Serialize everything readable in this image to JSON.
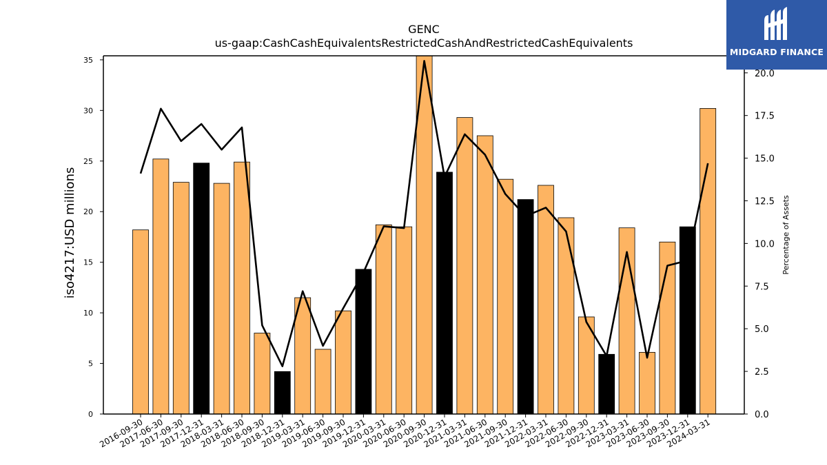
{
  "logo": {
    "text": "MIDGARD FINANCE",
    "background": "#2f5aa8"
  },
  "chart_data": {
    "type": "bar",
    "title": "GENC",
    "subtitle": "us-gaap:CashCashEquivalentsRestrictedCashAndRestrictedCashEquivalents",
    "ylabel": "iso4217:USD  millions",
    "y2label": "Percentage of Assets",
    "ylim": [
      0,
      35.4
    ],
    "y2lim": [
      0,
      21.0
    ],
    "yticks": [
      "0",
      "5",
      "10",
      "15",
      "20",
      "25",
      "30",
      "35"
    ],
    "y2ticks": [
      "0.0",
      "2.5",
      "5.0",
      "7.5",
      "10.0",
      "12.5",
      "15.0",
      "17.5",
      "20.0"
    ],
    "bar_colors": {
      "default": "#fdb462",
      "q4": "#000000"
    },
    "line_color": "#000000",
    "categories": [
      "2016-09-30",
      "2017-06-30",
      "2017-09-30",
      "2017-12-31",
      "2018-03-31",
      "2018-06-30",
      "2018-09-30",
      "2018-12-31",
      "2019-03-31",
      "2019-06-30",
      "2019-09-30",
      "2019-12-31",
      "2020-03-31",
      "2020-06-30",
      "2020-09-30",
      "2020-12-31",
      "2021-03-31",
      "2021-06-30",
      "2021-09-30",
      "2021-12-31",
      "2022-03-31",
      "2022-06-30",
      "2022-09-30",
      "2022-12-31",
      "2023-03-31",
      "2023-06-30",
      "2023-09-30",
      "2023-12-31",
      "2024-03-31"
    ],
    "series": [
      {
        "type": "bar",
        "axis": "left",
        "values": [
          18.2,
          25.2,
          22.9,
          24.8,
          22.8,
          24.9,
          8.0,
          4.2,
          11.5,
          6.4,
          10.2,
          14.3,
          18.7,
          18.5,
          35.4,
          23.9,
          29.3,
          27.5,
          23.2,
          21.2,
          22.6,
          19.4,
          9.6,
          5.9,
          18.4,
          6.1,
          17.0,
          18.5,
          30.2
        ],
        "highlight": [
          false,
          false,
          false,
          true,
          false,
          false,
          false,
          true,
          false,
          false,
          false,
          true,
          false,
          false,
          false,
          true,
          false,
          false,
          false,
          true,
          false,
          false,
          false,
          true,
          false,
          false,
          false,
          true,
          false
        ]
      },
      {
        "type": "line",
        "axis": "right",
        "values": [
          14.1,
          17.9,
          16.0,
          17.0,
          15.5,
          16.8,
          5.2,
          2.8,
          7.2,
          4.0,
          6.2,
          8.3,
          11.0,
          10.9,
          20.7,
          13.9,
          16.4,
          15.2,
          12.9,
          11.6,
          12.1,
          10.7,
          5.4,
          3.4,
          9.5,
          3.3,
          8.7,
          9.0,
          14.7
        ]
      }
    ]
  }
}
